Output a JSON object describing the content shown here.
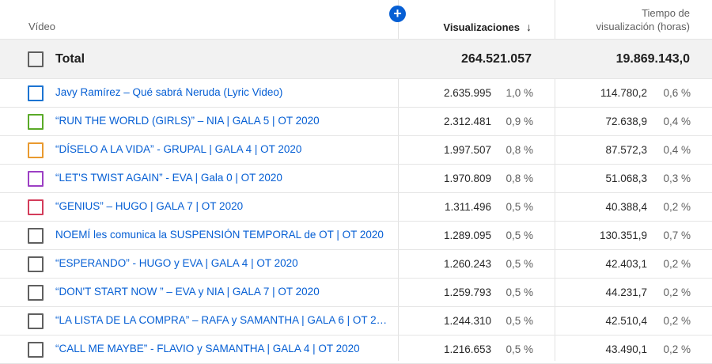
{
  "header": {
    "video_label": "Vídeo",
    "views_label": "Visualizaciones",
    "sort_arrow": "↓",
    "watch_line1": "Tiempo de",
    "watch_line2": "visualización (horas)",
    "add_symbol": "+"
  },
  "total": {
    "label": "Total",
    "views": "264.521.057",
    "watch_time": "19.869.143,0"
  },
  "rows": [
    {
      "title": "Javy Ramírez – Qué sabrá Neruda (Lyric Video)",
      "views": "2.635.995",
      "views_pct": "1,0 %",
      "watch": "114.780,2",
      "watch_pct": "0,6 %",
      "color": "#1c74d2"
    },
    {
      "title": "“RUN THE WORLD (GIRLS)” – NIA | GALA 5 | OT 2020",
      "views": "2.312.481",
      "views_pct": "0,9 %",
      "watch": "72.638,9",
      "watch_pct": "0,4 %",
      "color": "#5aaa28"
    },
    {
      "title": "“DÍSELO A LA VIDA” - GRUPAL | GALA 4 | OT 2020",
      "views": "1.997.507",
      "views_pct": "0,8 %",
      "watch": "87.572,3",
      "watch_pct": "0,4 %",
      "color": "#e99a2f"
    },
    {
      "title": "“LET'S TWIST AGAIN” - EVA | Gala 0 | OT 2020",
      "views": "1.970.809",
      "views_pct": "0,8 %",
      "watch": "51.068,3",
      "watch_pct": "0,3 %",
      "color": "#9c3fc4"
    },
    {
      "title": "“GENIUS” – HUGO | GALA 7 | OT 2020",
      "views": "1.311.496",
      "views_pct": "0,5 %",
      "watch": "40.388,4",
      "watch_pct": "0,2 %",
      "color": "#d33c5a"
    },
    {
      "title": "NOEMÍ les comunica la SUSPENSIÓN TEMPORAL de OT | OT 2020",
      "views": "1.289.095",
      "views_pct": "0,5 %",
      "watch": "130.351,9",
      "watch_pct": "0,7 %",
      "color": "#606060"
    },
    {
      "title": "“ESPERANDO” - HUGO y EVA | GALA 4 | OT 2020",
      "views": "1.260.243",
      "views_pct": "0,5 %",
      "watch": "42.403,1",
      "watch_pct": "0,2 %",
      "color": "#606060"
    },
    {
      "title": "“DON'T START NOW ” – EVA y NIA | GALA 7 | OT 2020",
      "views": "1.259.793",
      "views_pct": "0,5 %",
      "watch": "44.231,7",
      "watch_pct": "0,2 %",
      "color": "#606060"
    },
    {
      "title": "“LA LISTA DE LA COMPRA” – RAFA y SAMANTHA | GALA 6 | OT 20…",
      "views": "1.244.310",
      "views_pct": "0,5 %",
      "watch": "42.510,4",
      "watch_pct": "0,2 %",
      "color": "#606060"
    },
    {
      "title": "“CALL ME MAYBE” - FLAVIO y SAMANTHA | GALA 4 | OT 2020",
      "views": "1.216.653",
      "views_pct": "0,5 %",
      "watch": "43.490,1",
      "watch_pct": "0,2 %",
      "color": "#606060"
    }
  ]
}
